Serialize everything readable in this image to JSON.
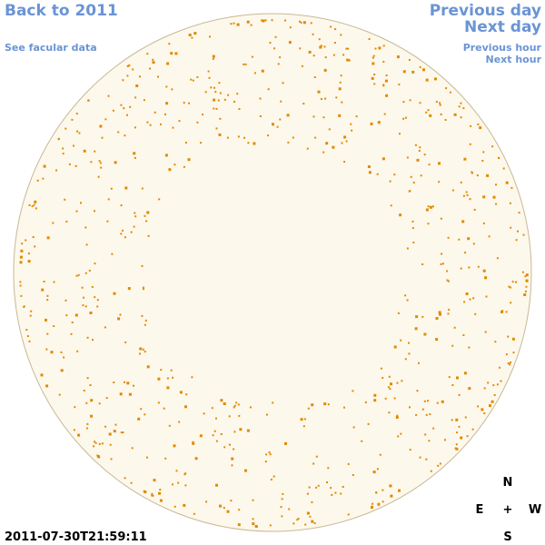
{
  "navigation": {
    "back_link": "Back to 2011",
    "facular_link": "See facular data",
    "previous_day": "Previous day",
    "next_day": "Next day",
    "previous_hour": "Previous hour",
    "next_hour": "Next hour"
  },
  "timestamp": "2011-07-30T21:59:11",
  "compass": {
    "north": "N",
    "east": "E",
    "center": "+",
    "west": "W",
    "south": "S"
  }
}
